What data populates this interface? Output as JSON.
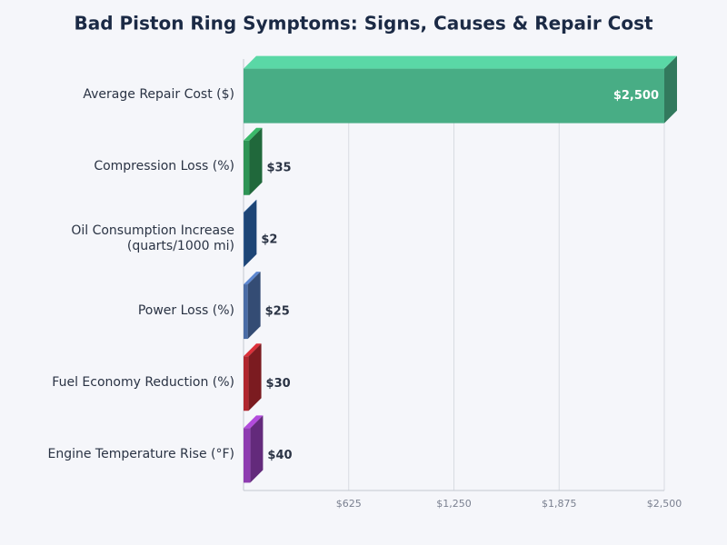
{
  "chart_data": {
    "type": "bar",
    "orientation": "horizontal",
    "title": "Bad Piston Ring Symptoms: Signs, Causes & Repair Cost",
    "categories": [
      "Average Repair Cost ($)",
      "Compression Loss (%)",
      "Oil Consumption Increase (quarts/1000 mi)",
      "Power Loss (%)",
      "Fuel Economy Reduction (%)",
      "Engine Temperature Rise (°F)"
    ],
    "values": [
      2500,
      35,
      2,
      25,
      30,
      40
    ],
    "value_labels": [
      "$2,500",
      "$35",
      "$2",
      "$25",
      "$30",
      "$40"
    ],
    "colors": [
      "#48ad85",
      "#2e9455",
      "#2a62a8",
      "#4a6ca6",
      "#b0262e",
      "#8e3cb0"
    ],
    "xlim": [
      0,
      2500
    ],
    "xticks": [
      {
        "value": 625,
        "label": "$625"
      },
      {
        "value": 1250,
        "label": "$1,250"
      },
      {
        "value": 1875,
        "label": "$1,875"
      },
      {
        "value": 2500,
        "label": "$2,500"
      }
    ],
    "grid": true
  }
}
